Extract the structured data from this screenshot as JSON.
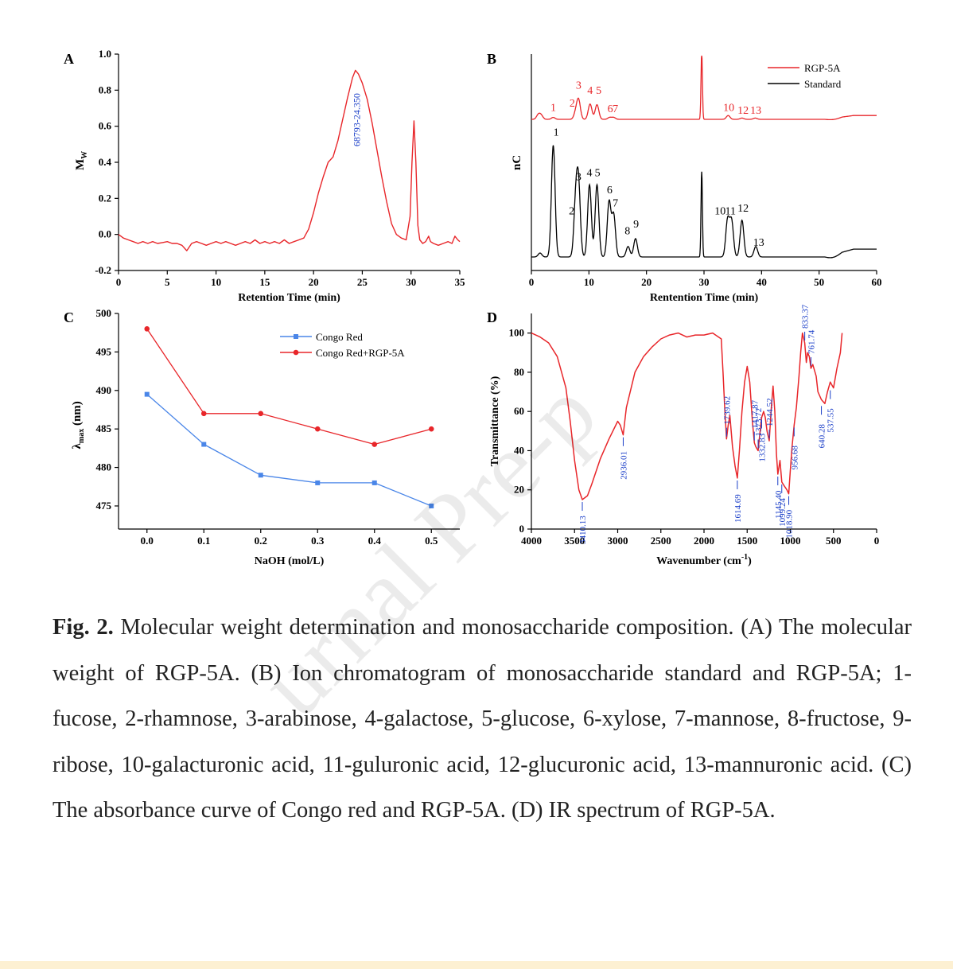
{
  "chart_data": [
    {
      "panel": "A",
      "type": "line",
      "xlabel": "Retention Time (min)",
      "ylabel": "M",
      "ylabel_sub": "W",
      "xlim": [
        0,
        35
      ],
      "ylim": [
        -0.2,
        1.0
      ],
      "xticks": [
        0,
        5,
        10,
        15,
        20,
        25,
        30,
        35
      ],
      "yticks": [
        -0.2,
        0.0,
        0.2,
        0.4,
        0.6,
        0.8,
        1.0
      ],
      "ytick_labels": [
        "-0.2",
        "0.0",
        "0.2",
        "0.4",
        "0.6",
        "0.8",
        "1.0"
      ],
      "color": "#e8262a",
      "x": [
        0,
        0.5,
        1,
        1.5,
        2,
        2.5,
        3,
        3.5,
        4,
        4.5,
        5,
        5.5,
        6,
        6.5,
        7,
        7.5,
        8,
        8.5,
        9,
        9.5,
        10,
        10.5,
        11,
        11.5,
        12,
        12.5,
        13,
        13.5,
        14,
        14.5,
        15,
        15.5,
        16,
        16.5,
        17,
        17.5,
        18,
        18.5,
        19,
        19.5,
        20,
        20.5,
        21,
        21.5,
        22,
        22.5,
        23,
        23.5,
        24,
        24.3,
        24.6,
        25,
        25.5,
        26,
        26.5,
        27,
        27.5,
        28,
        28.5,
        29,
        29.5,
        29.9,
        30.1,
        30.3,
        30.5,
        30.7,
        30.9,
        31.2,
        31.5,
        31.8,
        32.0,
        32.3,
        32.8,
        33.3,
        33.8,
        34.2,
        34.5,
        34.8,
        35
      ],
      "values": [
        0.0,
        -0.02,
        -0.03,
        -0.04,
        -0.05,
        -0.04,
        -0.05,
        -0.04,
        -0.05,
        -0.045,
        -0.04,
        -0.05,
        -0.05,
        -0.06,
        -0.09,
        -0.05,
        -0.04,
        -0.05,
        -0.06,
        -0.05,
        -0.04,
        -0.05,
        -0.04,
        -0.05,
        -0.06,
        -0.05,
        -0.04,
        -0.05,
        -0.03,
        -0.05,
        -0.04,
        -0.05,
        -0.04,
        -0.05,
        -0.03,
        -0.05,
        -0.04,
        -0.03,
        -0.02,
        0.03,
        0.12,
        0.23,
        0.32,
        0.4,
        0.43,
        0.52,
        0.64,
        0.76,
        0.87,
        0.91,
        0.89,
        0.84,
        0.75,
        0.62,
        0.47,
        0.32,
        0.18,
        0.06,
        0.0,
        -0.02,
        -0.03,
        0.1,
        0.4,
        0.63,
        0.4,
        0.05,
        -0.03,
        -0.05,
        -0.04,
        -0.01,
        -0.04,
        -0.05,
        -0.06,
        -0.05,
        -0.04,
        -0.05,
        -0.01,
        -0.03,
        -0.04
      ],
      "annotation": {
        "x": 24.35,
        "y": 0.92,
        "text": "68793-24.350",
        "color": "#1a3ec8"
      }
    },
    {
      "panel": "B",
      "type": "line",
      "xlabel": "Rentention Time (min)",
      "ylabel": "nC",
      "xlim": [
        0,
        60
      ],
      "xticks": [
        0,
        10,
        20,
        30,
        40,
        50,
        60
      ],
      "legend": {
        "position": "top-right",
        "entries": [
          {
            "name": "RGP-5A",
            "color": "#e8262a"
          },
          {
            "name": "Standard",
            "color": "#000000"
          }
        ]
      },
      "series": [
        {
          "name": "RGP-5A",
          "color": "#e8262a",
          "baseline": 1.0,
          "peaks": [
            [
              1.2,
              0.07
            ],
            [
              1.7,
              0.06
            ],
            [
              3.8,
              0.03
            ],
            [
              7.7,
              0.1
            ],
            [
              8.2,
              0.3
            ],
            [
              10.2,
              0.24
            ],
            [
              11.4,
              0.23
            ],
            [
              13.6,
              0.03
            ],
            [
              14.3,
              0.03
            ],
            [
              29.6,
              1.05
            ],
            [
              34.2,
              0.06
            ],
            [
              36.6,
              0.02
            ],
            [
              38.9,
              0.02
            ]
          ],
          "labels": [
            {
              "text": "1",
              "x": 3.8,
              "h": 0.08
            },
            {
              "text": "2",
              "x": 7.1,
              "h": 0.15
            },
            {
              "text": "3",
              "x": 8.2,
              "h": 0.43
            },
            {
              "text": "4",
              "x": 10.2,
              "h": 0.35
            },
            {
              "text": "5",
              "x": 11.7,
              "h": 0.35
            },
            {
              "text": "6",
              "x": 13.7,
              "h": 0.06
            },
            {
              "text": "7",
              "x": 14.6,
              "h": 0.06
            },
            {
              "text": "10",
              "x": 34.3,
              "h": 0.08
            },
            {
              "text": "12",
              "x": 36.8,
              "h": 0.04
            },
            {
              "text": "13",
              "x": 39.0,
              "h": 0.04
            }
          ]
        },
        {
          "name": "Standard",
          "color": "#000000",
          "baseline": 0.0,
          "peaks": [
            [
              1.5,
              0.03
            ],
            [
              3.8,
              0.85
            ],
            [
              7.7,
              0.4
            ],
            [
              8.2,
              0.52
            ],
            [
              10.1,
              0.55
            ],
            [
              11.4,
              0.55
            ],
            [
              13.5,
              0.42
            ],
            [
              14.3,
              0.32
            ],
            [
              16.8,
              0.08
            ],
            [
              18.1,
              0.14
            ],
            [
              29.6,
              0.65
            ],
            [
              34.1,
              0.28
            ],
            [
              34.8,
              0.27
            ],
            [
              36.6,
              0.28
            ],
            [
              39.0,
              0.08
            ]
          ],
          "labels": [
            {
              "text": "1",
              "x": 4.3,
              "h": 0.9
            },
            {
              "text": "2",
              "x": 7.0,
              "h": 0.3
            },
            {
              "text": "3",
              "x": 8.2,
              "h": 0.56
            },
            {
              "text": "4",
              "x": 10.1,
              "h": 0.59
            },
            {
              "text": "5",
              "x": 11.5,
              "h": 0.59
            },
            {
              "text": "6",
              "x": 13.6,
              "h": 0.46
            },
            {
              "text": "7",
              "x": 14.6,
              "h": 0.36
            },
            {
              "text": "8",
              "x": 16.7,
              "h": 0.15
            },
            {
              "text": "9",
              "x": 18.2,
              "h": 0.2
            },
            {
              "text": "10",
              "x": 32.8,
              "h": 0.3
            },
            {
              "text": "11",
              "x": 34.6,
              "h": 0.3
            },
            {
              "text": "12",
              "x": 36.8,
              "h": 0.32
            },
            {
              "text": "13",
              "x": 39.5,
              "h": 0.06
            }
          ]
        }
      ]
    },
    {
      "panel": "C",
      "type": "line",
      "xlabel": "NaOH (mol/L)",
      "ylabel": "λ",
      "ylabel_sub": "max",
      "ylabel_unit": " (nm)",
      "xlim": [
        -0.05,
        0.55
      ],
      "ylim": [
        472,
        500
      ],
      "xticks": [
        0.0,
        0.1,
        0.2,
        0.3,
        0.4,
        0.5
      ],
      "xtick_labels": [
        "0.0",
        "0.1",
        "0.2",
        "0.3",
        "0.4",
        "0.5"
      ],
      "yticks": [
        475,
        480,
        485,
        490,
        495,
        500
      ],
      "categories": [
        0.0,
        0.1,
        0.2,
        0.3,
        0.4,
        0.5
      ],
      "legend": {
        "position": "top-right"
      },
      "series": [
        {
          "name": "Congo Red",
          "color": "#4a86e8",
          "marker": "square",
          "values": [
            489.5,
            483,
            479,
            478,
            478,
            475
          ]
        },
        {
          "name": "Congo Red+RGP-5A",
          "color": "#e8262a",
          "marker": "circle",
          "values": [
            498,
            487,
            487,
            485,
            483,
            485
          ]
        }
      ]
    },
    {
      "panel": "D",
      "type": "line",
      "xlabel": "Wavenumber (cm",
      "xlabel_sup": "-1",
      "xlabel_end": ")",
      "ylabel": "Transmittance (%)",
      "xlim": [
        4000,
        0
      ],
      "ylim": [
        0,
        110
      ],
      "xticks": [
        4000,
        3500,
        3000,
        2500,
        2000,
        1500,
        1000,
        500,
        0
      ],
      "yticks": [
        0,
        20,
        40,
        60,
        80,
        100
      ],
      "color": "#e8262a",
      "x": [
        4000,
        3900,
        3800,
        3700,
        3600,
        3550,
        3500,
        3450,
        3410,
        3350,
        3300,
        3200,
        3100,
        3000,
        2970,
        2936,
        2900,
        2800,
        2700,
        2600,
        2500,
        2400,
        2300,
        2200,
        2100,
        2000,
        1900,
        1800,
        1780,
        1760,
        1739,
        1720,
        1700,
        1670,
        1640,
        1614,
        1590,
        1560,
        1530,
        1500,
        1470,
        1440,
        1417,
        1400,
        1373,
        1350,
        1332,
        1310,
        1290,
        1270,
        1244,
        1220,
        1200,
        1180,
        1160,
        1145,
        1120,
        1099,
        1070,
        1040,
        1018,
        1000,
        980,
        956,
        930,
        900,
        880,
        860,
        833,
        815,
        800,
        780,
        761,
        740,
        700,
        680,
        640,
        600,
        570,
        537,
        500,
        460,
        420,
        400
      ],
      "values": [
        100,
        98,
        95,
        88,
        72,
        55,
        35,
        20,
        15,
        17,
        23,
        36,
        46,
        55,
        53,
        48,
        62,
        80,
        88,
        93,
        97,
        99,
        100,
        98,
        99,
        99,
        100,
        97,
        80,
        62,
        46,
        53,
        58,
        42,
        32,
        26,
        40,
        60,
        75,
        83,
        75,
        55,
        44,
        42,
        40,
        50,
        57,
        60,
        57,
        50,
        45,
        62,
        73,
        60,
        38,
        28,
        35,
        24,
        22,
        20,
        18,
        30,
        42,
        53,
        62,
        78,
        90,
        100,
        95,
        85,
        90,
        88,
        82,
        84,
        78,
        70,
        66,
        64,
        70,
        75,
        72,
        82,
        90,
        100
      ],
      "annotations": [
        {
          "text": "3410.13",
          "x": 3410,
          "y": 15
        },
        {
          "text": "2936.01",
          "x": 2936,
          "y": 48
        },
        {
          "text": "1739.62",
          "x": 1739,
          "y": 46
        },
        {
          "text": "1614.69",
          "x": 1614,
          "y": 26
        },
        {
          "text": "1417.87",
          "x": 1417,
          "y": 44
        },
        {
          "text": "1373.72",
          "x": 1373,
          "y": 40
        },
        {
          "text": "1332.83",
          "x": 1332,
          "y": 57
        },
        {
          "text": "1244.52",
          "x": 1244,
          "y": 45
        },
        {
          "text": "1145.40",
          "x": 1145,
          "y": 28
        },
        {
          "text": "1099.24",
          "x": 1099,
          "y": 24
        },
        {
          "text": "1018.90",
          "x": 1018,
          "y": 18
        },
        {
          "text": "956.68",
          "x": 956,
          "y": 53
        },
        {
          "text": "833.37",
          "x": 833,
          "y": 95
        },
        {
          "text": "761.74",
          "x": 761,
          "y": 82
        },
        {
          "text": "640.28",
          "x": 640,
          "y": 64
        },
        {
          "text": "537.55",
          "x": 537,
          "y": 72
        }
      ]
    }
  ],
  "caption": {
    "fig_label": "Fig. 2.",
    "text": " Molecular weight determination and monosaccharide composition. (A) The molecular weight of RGP-5A. (B) Ion chromatogram of monosaccharide standard and RGP-5A; 1-fucose, 2-rhamnose, 3-arabinose, 4-galactose, 5-glucose, 6-xylose, 7-mannose, 8-fructose, 9-ribose, 10-galacturonic acid, 11-guluronic acid, 12-glucuronic acid, 13-mannuronic acid. (C) The absorbance curve of Congo red and RGP-5A. (D) IR spectrum of RGP-5A."
  },
  "watermark": "urnal Pre-p"
}
